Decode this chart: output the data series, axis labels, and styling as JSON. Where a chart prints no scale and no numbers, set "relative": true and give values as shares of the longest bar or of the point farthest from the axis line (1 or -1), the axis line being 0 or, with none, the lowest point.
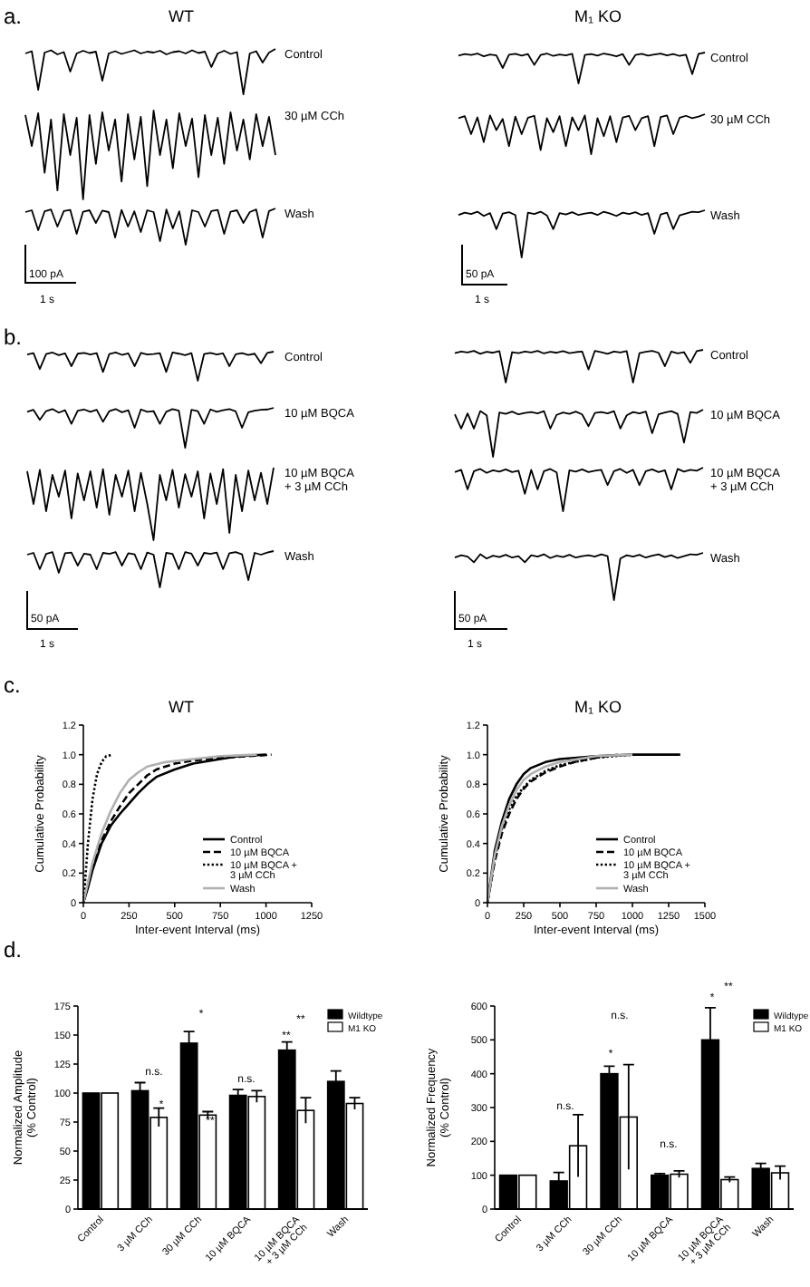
{
  "chart_data": [
    {
      "type": "line",
      "relative": true,
      "title": "Control",
      "annotations": [
        "a.",
        "WT"
      ],
      "categories": [
        null,
        null,
        null,
        null,
        null,
        null,
        null,
        null,
        null,
        null,
        null,
        null,
        null,
        null,
        null,
        null,
        null,
        null,
        null,
        null,
        null,
        null,
        null,
        null,
        null,
        null,
        null,
        null,
        null,
        null,
        null,
        null,
        null,
        null,
        null,
        null,
        null,
        null,
        null,
        null
      ],
      "color": "#000000",
      "values": [
        0.9,
        0.95,
        0.1,
        0.92,
        0.97,
        0.88,
        0.93,
        0.5,
        0.9,
        0.96,
        0.91,
        0.94,
        0.3,
        0.9,
        0.95,
        0.89,
        0.93,
        0.97,
        0.9,
        0.94,
        0.92,
        0.96,
        0.88,
        0.93,
        0.95,
        0.9,
        0.97,
        0.91,
        0.94,
        0.6,
        0.9,
        0.96,
        0.89,
        0.93,
        0.0,
        0.9,
        0.95,
        0.7,
        0.92,
        1.0
      ]
    },
    {
      "type": "line",
      "relative": true,
      "title": "30 µM CCh",
      "categories": [
        null,
        null,
        null,
        null,
        null,
        null,
        null,
        null,
        null,
        null,
        null,
        null,
        null,
        null,
        null,
        null,
        null,
        null,
        null,
        null,
        null,
        null,
        null,
        null,
        null,
        null,
        null,
        null,
        null,
        null,
        null,
        null,
        null,
        null,
        null,
        null,
        null,
        null,
        null,
        null
      ],
      "color": "#000000",
      "values": [
        0.95,
        0.6,
        0.97,
        0.3,
        0.9,
        0.1,
        0.96,
        0.5,
        0.92,
        0.0,
        0.95,
        0.4,
        0.98,
        0.55,
        0.9,
        0.2,
        0.96,
        0.45,
        0.93,
        0.15,
        1.0,
        0.5,
        0.9,
        0.35,
        0.97,
        0.6,
        0.91,
        0.25,
        0.95,
        0.5,
        0.92,
        0.4,
        0.98,
        0.55,
        0.9,
        0.45,
        0.96,
        0.6,
        0.93,
        0.5
      ]
    },
    {
      "type": "line",
      "relative": true,
      "title": "Wash",
      "annotations": [
        "100 pA",
        "1 s"
      ],
      "categories": [
        null,
        null,
        null,
        null,
        null,
        null,
        null,
        null,
        null,
        null,
        null,
        null,
        null,
        null,
        null,
        null,
        null,
        null,
        null,
        null,
        null,
        null,
        null,
        null,
        null,
        null,
        null,
        null,
        null,
        null,
        null,
        null,
        null,
        null,
        null,
        null,
        null,
        null,
        null,
        null
      ],
      "color": "#000000",
      "values": [
        0.9,
        0.95,
        0.4,
        0.92,
        0.97,
        0.5,
        0.93,
        0.96,
        0.3,
        0.91,
        0.95,
        0.6,
        0.94,
        0.9,
        0.2,
        0.96,
        0.5,
        0.92,
        0.35,
        0.95,
        0.9,
        0.1,
        0.97,
        0.45,
        0.92,
        0.0,
        0.95,
        0.9,
        0.5,
        0.93,
        0.96,
        0.3,
        0.91,
        0.95,
        0.6,
        0.9,
        0.97,
        0.2,
        0.93,
        1.0
      ]
    },
    {
      "type": "line",
      "relative": true,
      "title": "Control",
      "annotations": [
        "M₁ KO"
      ],
      "categories": [
        null,
        null,
        null,
        null,
        null,
        null,
        null,
        null,
        null,
        null,
        null,
        null,
        null,
        null,
        null,
        null,
        null,
        null,
        null,
        null,
        null,
        null,
        null,
        null,
        null,
        null,
        null,
        null,
        null,
        null,
        null,
        null,
        null,
        null,
        null,
        null,
        null,
        null,
        null,
        null
      ],
      "color": "#000000",
      "values": [
        0.9,
        0.95,
        0.92,
        0.97,
        0.88,
        0.94,
        0.91,
        0.5,
        0.93,
        0.96,
        0.9,
        0.95,
        0.6,
        0.92,
        0.97,
        0.89,
        0.94,
        0.91,
        0.96,
        0.0,
        0.92,
        0.95,
        0.9,
        0.97,
        0.93,
        0.88,
        0.95,
        0.6,
        0.92,
        0.96,
        0.9,
        0.94,
        0.97,
        0.91,
        0.95,
        0.89,
        0.93,
        0.3,
        0.96,
        1.0
      ]
    },
    {
      "type": "line",
      "relative": true,
      "title": "30 µM CCh",
      "categories": [
        null,
        null,
        null,
        null,
        null,
        null,
        null,
        null,
        null,
        null,
        null,
        null,
        null,
        null,
        null,
        null,
        null,
        null,
        null,
        null,
        null,
        null,
        null,
        null,
        null,
        null,
        null,
        null,
        null,
        null,
        null,
        null,
        null,
        null,
        null,
        null,
        null,
        null,
        null,
        null
      ],
      "color": "#000000",
      "values": [
        0.9,
        0.95,
        0.5,
        0.92,
        0.3,
        0.97,
        0.6,
        0.88,
        0.2,
        0.94,
        0.5,
        0.91,
        0.96,
        0.1,
        0.9,
        0.55,
        0.95,
        0.2,
        0.92,
        0.6,
        0.97,
        0.0,
        0.9,
        0.45,
        0.95,
        0.3,
        0.92,
        0.96,
        0.6,
        0.9,
        0.95,
        0.2,
        0.93,
        0.97,
        0.5,
        0.91,
        0.96,
        0.9,
        0.94,
        1.0
      ]
    },
    {
      "type": "line",
      "relative": true,
      "title": "Wash",
      "annotations": [
        "50 pA",
        "1 s"
      ],
      "categories": [
        null,
        null,
        null,
        null,
        null,
        null,
        null,
        null,
        null,
        null,
        null,
        null,
        null,
        null,
        null,
        null,
        null,
        null,
        null,
        null,
        null,
        null,
        null,
        null,
        null,
        null,
        null,
        null,
        null,
        null,
        null,
        null,
        null,
        null,
        null,
        null,
        null,
        null,
        null,
        null
      ],
      "color": "#000000",
      "values": [
        0.9,
        0.95,
        0.92,
        0.97,
        0.88,
        0.94,
        0.6,
        0.93,
        0.96,
        0.9,
        0.0,
        0.95,
        0.92,
        0.97,
        0.89,
        0.6,
        0.94,
        0.91,
        0.96,
        0.9,
        0.93,
        0.95,
        0.9,
        0.97,
        0.93,
        0.88,
        0.95,
        0.92,
        0.96,
        0.9,
        0.94,
        0.5,
        0.91,
        0.95,
        0.6,
        0.89,
        0.93,
        0.97,
        0.96,
        1.0
      ]
    },
    {
      "type": "line",
      "relative": true,
      "title": "Control",
      "annotations": [
        "b."
      ],
      "categories": [
        null,
        null,
        null,
        null,
        null,
        null,
        null,
        null,
        null,
        null,
        null,
        null,
        null,
        null,
        null,
        null,
        null,
        null,
        null,
        null,
        null,
        null,
        null,
        null,
        null,
        null,
        null,
        null,
        null,
        null,
        null,
        null,
        null,
        null,
        null,
        null,
        null,
        null,
        null,
        null
      ],
      "color": "#000000",
      "values": [
        0.9,
        0.95,
        0.4,
        0.92,
        0.97,
        0.88,
        0.94,
        0.5,
        0.93,
        0.96,
        0.9,
        0.95,
        0.3,
        0.92,
        0.97,
        0.89,
        0.94,
        0.5,
        0.96,
        0.9,
        0.92,
        0.95,
        0.3,
        0.97,
        0.93,
        0.88,
        0.95,
        0.0,
        0.92,
        0.96,
        0.9,
        0.94,
        0.5,
        0.91,
        0.95,
        0.89,
        0.93,
        0.6,
        0.96,
        1.0
      ]
    },
    {
      "type": "line",
      "relative": true,
      "title": "10 µM BQCA",
      "categories": [
        null,
        null,
        null,
        null,
        null,
        null,
        null,
        null,
        null,
        null,
        null,
        null,
        null,
        null,
        null,
        null,
        null,
        null,
        null,
        null,
        null,
        null,
        null,
        null,
        null,
        null,
        null,
        null,
        null,
        null,
        null,
        null,
        null,
        null,
        null,
        null,
        null,
        null,
        null,
        null
      ],
      "color": "#000000",
      "values": [
        0.9,
        0.95,
        0.7,
        0.92,
        0.97,
        0.88,
        0.94,
        0.6,
        0.93,
        0.96,
        0.9,
        0.95,
        0.65,
        0.92,
        0.97,
        0.89,
        0.94,
        0.5,
        0.96,
        0.9,
        0.92,
        0.6,
        0.9,
        0.97,
        0.93,
        0.0,
        0.95,
        0.92,
        0.6,
        0.96,
        0.9,
        0.94,
        0.97,
        0.91,
        0.5,
        0.89,
        0.93,
        0.95,
        0.96,
        1.0
      ]
    },
    {
      "type": "line",
      "relative": true,
      "title": "10 µM BQCA + 3 µM CCh",
      "categories": [
        null,
        null,
        null,
        null,
        null,
        null,
        null,
        null,
        null,
        null,
        null,
        null,
        null,
        null,
        null,
        null,
        null,
        null,
        null,
        null,
        null,
        null,
        null,
        null,
        null,
        null,
        null,
        null,
        null,
        null,
        null,
        null,
        null,
        null,
        null,
        null,
        null,
        null,
        null,
        null
      ],
      "color": "#000000",
      "values": [
        0.95,
        0.5,
        0.97,
        0.4,
        0.9,
        0.6,
        0.96,
        0.3,
        0.92,
        0.55,
        0.95,
        0.45,
        0.98,
        0.35,
        0.9,
        0.6,
        0.96,
        0.4,
        0.93,
        0.5,
        0.0,
        0.9,
        0.55,
        0.97,
        0.45,
        0.91,
        0.6,
        0.95,
        0.3,
        0.92,
        0.5,
        0.98,
        0.1,
        0.9,
        0.4,
        0.96,
        0.55,
        0.93,
        0.5,
        1.0
      ]
    },
    {
      "type": "line",
      "relative": true,
      "title": "Wash",
      "annotations": [
        "50 pA",
        "1 s"
      ],
      "categories": [
        null,
        null,
        null,
        null,
        null,
        null,
        null,
        null,
        null,
        null,
        null,
        null,
        null,
        null,
        null,
        null,
        null,
        null,
        null,
        null,
        null,
        null,
        null,
        null,
        null,
        null,
        null,
        null,
        null,
        null,
        null,
        null,
        null,
        null,
        null,
        null,
        null,
        null,
        null,
        null
      ],
      "color": "#000000",
      "values": [
        0.9,
        0.95,
        0.5,
        0.92,
        0.97,
        0.4,
        0.94,
        0.96,
        0.6,
        0.93,
        0.9,
        0.5,
        0.95,
        0.92,
        0.97,
        0.6,
        0.94,
        0.91,
        0.5,
        0.96,
        0.9,
        0.0,
        0.95,
        0.92,
        0.5,
        0.97,
        0.93,
        0.6,
        0.95,
        0.92,
        0.96,
        0.5,
        0.94,
        0.97,
        0.91,
        0.2,
        0.95,
        0.9,
        0.96,
        1.0
      ]
    },
    {
      "type": "line",
      "relative": true,
      "title": "Control",
      "categories": [
        null,
        null,
        null,
        null,
        null,
        null,
        null,
        null,
        null,
        null,
        null,
        null,
        null,
        null,
        null,
        null,
        null,
        null,
        null,
        null,
        null,
        null,
        null,
        null,
        null,
        null,
        null,
        null,
        null,
        null,
        null,
        null,
        null,
        null,
        null,
        null,
        null,
        null,
        null,
        null
      ],
      "color": "#000000",
      "values": [
        0.9,
        0.95,
        0.92,
        0.97,
        0.88,
        0.94,
        0.91,
        0.96,
        0.0,
        0.93,
        0.9,
        0.95,
        0.92,
        0.97,
        0.89,
        0.94,
        0.91,
        0.96,
        0.9,
        0.93,
        0.95,
        0.4,
        0.97,
        0.93,
        0.88,
        0.95,
        0.92,
        0.96,
        0.0,
        0.9,
        0.94,
        0.97,
        0.91,
        0.5,
        0.95,
        0.89,
        0.93,
        0.6,
        0.96,
        1.0
      ]
    },
    {
      "type": "line",
      "relative": true,
      "title": "10 µM BQCA",
      "categories": [
        null,
        null,
        null,
        null,
        null,
        null,
        null,
        null,
        null,
        null,
        null,
        null,
        null,
        null,
        null,
        null,
        null,
        null,
        null,
        null,
        null,
        null,
        null,
        null,
        null,
        null,
        null,
        null,
        null,
        null,
        null,
        null,
        null,
        null,
        null,
        null,
        null,
        null,
        null,
        null
      ],
      "color": "#000000",
      "values": [
        0.9,
        0.6,
        0.92,
        0.6,
        0.97,
        0.88,
        0.0,
        0.94,
        0.91,
        0.96,
        0.9,
        0.93,
        0.95,
        0.92,
        0.97,
        0.6,
        0.89,
        0.94,
        0.91,
        0.96,
        0.9,
        0.65,
        0.93,
        0.95,
        0.92,
        0.97,
        0.6,
        0.88,
        0.95,
        0.92,
        0.96,
        0.5,
        0.9,
        0.94,
        0.97,
        0.91,
        0.3,
        0.95,
        0.93,
        1.0
      ]
    },
    {
      "type": "line",
      "relative": true,
      "title": "10 µM BQCA + 3 µM CCh",
      "categories": [
        null,
        null,
        null,
        null,
        null,
        null,
        null,
        null,
        null,
        null,
        null,
        null,
        null,
        null,
        null,
        null,
        null,
        null,
        null,
        null,
        null,
        null,
        null,
        null,
        null,
        null,
        null,
        null,
        null,
        null,
        null,
        null,
        null,
        null,
        null,
        null,
        null,
        null,
        null,
        null
      ],
      "color": "#000000",
      "values": [
        0.9,
        0.95,
        0.5,
        0.92,
        0.97,
        0.88,
        0.94,
        0.91,
        0.96,
        0.9,
        0.93,
        0.4,
        0.95,
        0.5,
        0.92,
        0.97,
        0.89,
        0.0,
        0.94,
        0.91,
        0.96,
        0.9,
        0.93,
        0.95,
        0.6,
        0.92,
        0.97,
        0.88,
        0.95,
        0.6,
        0.92,
        0.96,
        0.9,
        0.94,
        0.5,
        0.97,
        0.91,
        0.95,
        0.93,
        1.0
      ]
    },
    {
      "type": "line",
      "relative": true,
      "title": "Wash",
      "annotations": [
        "50 pA",
        "1 s"
      ],
      "categories": [
        null,
        null,
        null,
        null,
        null,
        null,
        null,
        null,
        null,
        null,
        null,
        null,
        null,
        null,
        null,
        null,
        null,
        null,
        null,
        null,
        null,
        null,
        null,
        null,
        null,
        null,
        null,
        null,
        null,
        null,
        null,
        null,
        null,
        null,
        null,
        null,
        null,
        null,
        null,
        null
      ],
      "color": "#000000",
      "values": [
        0.9,
        0.95,
        0.92,
        0.8,
        0.97,
        0.88,
        0.94,
        0.91,
        0.96,
        0.9,
        0.93,
        0.8,
        0.95,
        0.92,
        0.97,
        0.89,
        0.94,
        0.91,
        0.96,
        0.9,
        0.93,
        0.95,
        0.92,
        0.97,
        0.93,
        0.0,
        0.88,
        0.95,
        0.92,
        0.96,
        0.9,
        0.94,
        0.97,
        0.91,
        0.95,
        0.89,
        0.93,
        0.97,
        0.96,
        1.0
      ]
    },
    {
      "type": "line",
      "title": "WT",
      "annotations": [
        "c."
      ],
      "xlabel": "Inter-event Interval (ms)",
      "ylabel": "Cumulative Probability",
      "xlim": [
        0,
        1250
      ],
      "xticks": [
        0,
        250,
        500,
        750,
        1000,
        1250
      ],
      "ylim": [
        0,
        1.2
      ],
      "yticks": [
        0,
        0.2,
        0.4,
        0.6,
        0.8,
        {
          "value": 1,
          "label": "1.0"
        },
        1.2
      ],
      "legend": "bottom right",
      "series": [
        {
          "name": "Control",
          "color": "#000000",
          "line_style": "solid",
          "x": [
            0,
            25,
            50,
            100,
            150,
            200,
            250,
            300,
            350,
            400,
            500,
            600,
            750,
            850,
            1000
          ],
          "values": [
            0,
            0.1,
            0.22,
            0.4,
            0.52,
            0.6,
            0.67,
            0.74,
            0.8,
            0.85,
            0.9,
            0.94,
            0.97,
            0.99,
            1.0
          ]
        },
        {
          "name": "10 µM BQCA",
          "color": "#000000",
          "line_style": "dashed",
          "x": [
            0,
            50,
            100,
            150,
            200,
            250,
            300,
            350,
            400,
            500,
            600,
            750,
            900,
            1030
          ],
          "values": [
            0,
            0.25,
            0.42,
            0.55,
            0.65,
            0.74,
            0.8,
            0.86,
            0.9,
            0.94,
            0.96,
            0.98,
            0.99,
            1.0
          ]
        },
        {
          "name": "10 µM BQCA + 3 µM CCh",
          "color": "#000000",
          "line_style": "dotted",
          "x": [
            0,
            10,
            25,
            50,
            75,
            100,
            125,
            160
          ],
          "values": [
            0,
            0.15,
            0.4,
            0.7,
            0.87,
            0.95,
            0.99,
            1.0
          ]
        },
        {
          "name": "Wash",
          "color": "#b0b0b0",
          "line_style": "solid",
          "x": [
            0,
            50,
            100,
            150,
            200,
            250,
            300,
            350,
            450,
            600,
            750,
            950
          ],
          "values": [
            0,
            0.27,
            0.47,
            0.62,
            0.74,
            0.83,
            0.88,
            0.92,
            0.95,
            0.97,
            0.99,
            1.0
          ]
        }
      ]
    },
    {
      "type": "line",
      "title": "M₁ KO",
      "xlabel": "Inter-event Interval (ms)",
      "ylabel": "Cumulative Probability",
      "xlim": [
        0,
        1500
      ],
      "xticks": [
        0,
        250,
        500,
        750,
        1000,
        1250,
        1500
      ],
      "ylim": [
        0,
        1.2
      ],
      "yticks": [
        0,
        0.2,
        0.4,
        0.6,
        0.8,
        {
          "value": 1,
          "label": "1.0"
        },
        1.2
      ],
      "legend": "bottom right",
      "series": [
        {
          "name": "Control",
          "color": "#000000",
          "line_style": "solid",
          "x": [
            0,
            50,
            100,
            150,
            200,
            250,
            300,
            400,
            500,
            750,
            1000,
            1330
          ],
          "values": [
            0,
            0.35,
            0.55,
            0.7,
            0.8,
            0.87,
            0.91,
            0.95,
            0.97,
            0.99,
            1.0,
            1.0
          ]
        },
        {
          "name": "10 µM BQCA",
          "color": "#000000",
          "line_style": "dashed",
          "x": [
            0,
            50,
            100,
            150,
            200,
            250,
            300,
            400,
            500,
            600,
            750,
            900
          ],
          "values": [
            0,
            0.28,
            0.47,
            0.6,
            0.7,
            0.77,
            0.82,
            0.88,
            0.92,
            0.95,
            0.98,
            1.0
          ]
        },
        {
          "name": "10 µM BQCA + 3 µM CCh",
          "color": "#000000",
          "line_style": "dotted",
          "x": [
            0,
            50,
            100,
            150,
            200,
            250,
            300,
            400,
            500,
            750,
            1000
          ],
          "values": [
            0,
            0.3,
            0.5,
            0.63,
            0.72,
            0.78,
            0.83,
            0.89,
            0.93,
            0.98,
            1.0
          ]
        },
        {
          "name": "Wash",
          "color": "#b0b0b0",
          "line_style": "solid",
          "x": [
            0,
            50,
            100,
            150,
            200,
            250,
            300,
            400,
            500,
            750,
            1000
          ],
          "values": [
            0,
            0.32,
            0.52,
            0.66,
            0.76,
            0.83,
            0.87,
            0.92,
            0.95,
            0.99,
            1.0
          ]
        }
      ]
    },
    {
      "type": "bar",
      "ylabel": "Normalized Amplitude (% Control)",
      "categories": [
        "Control",
        "3 µM CCh",
        "30 µM CCh",
        "10 µM BQCA",
        "10 µM BQCA + 3 µM CCh",
        "Wash"
      ],
      "ylim": [
        0,
        175
      ],
      "yticks": [
        0,
        25,
        50,
        75,
        100,
        125,
        150,
        175
      ],
      "legend": "top right",
      "annotations": [
        "d.",
        "n.s.",
        "*",
        "*",
        "**",
        "n.s.",
        "**",
        "**"
      ],
      "series": [
        {
          "name": "Wildtype",
          "color": "#000000",
          "values": [
            100,
            102,
            143,
            98,
            137,
            110
          ],
          "errors": [
            null,
            7,
            10,
            5,
            7,
            9
          ]
        },
        {
          "name": "M1 KO",
          "color": "#ffffff",
          "values": [
            100,
            79,
            81,
            97,
            85,
            91
          ],
          "errors": [
            null,
            8,
            3,
            5,
            11,
            5
          ]
        }
      ]
    },
    {
      "type": "bar",
      "ylabel": "Normalized Frequency (% Control)",
      "categories": [
        "Control",
        "3 µM CCh",
        "30 µM CCh",
        "10 µM BQCA",
        "10 µM BQCA + 3 µM CCh",
        "Wash"
      ],
      "ylim": [
        0,
        600
      ],
      "yticks": [
        0,
        100,
        200,
        300,
        400,
        500,
        600
      ],
      "legend": "top right",
      "annotations": [
        "n.s.",
        "n.s.",
        "*",
        "n.s.",
        "**",
        "*"
      ],
      "series": [
        {
          "name": "Wildtype",
          "color": "#000000",
          "values": [
            100,
            83,
            400,
            100,
            500,
            120
          ],
          "errors": [
            null,
            25,
            22,
            5,
            95,
            15
          ]
        },
        {
          "name": "M1 KO",
          "color": "#ffffff",
          "values": [
            100,
            187,
            272,
            103,
            87,
            107
          ],
          "errors": [
            null,
            92,
            155,
            10,
            8,
            20
          ]
        }
      ]
    }
  ]
}
